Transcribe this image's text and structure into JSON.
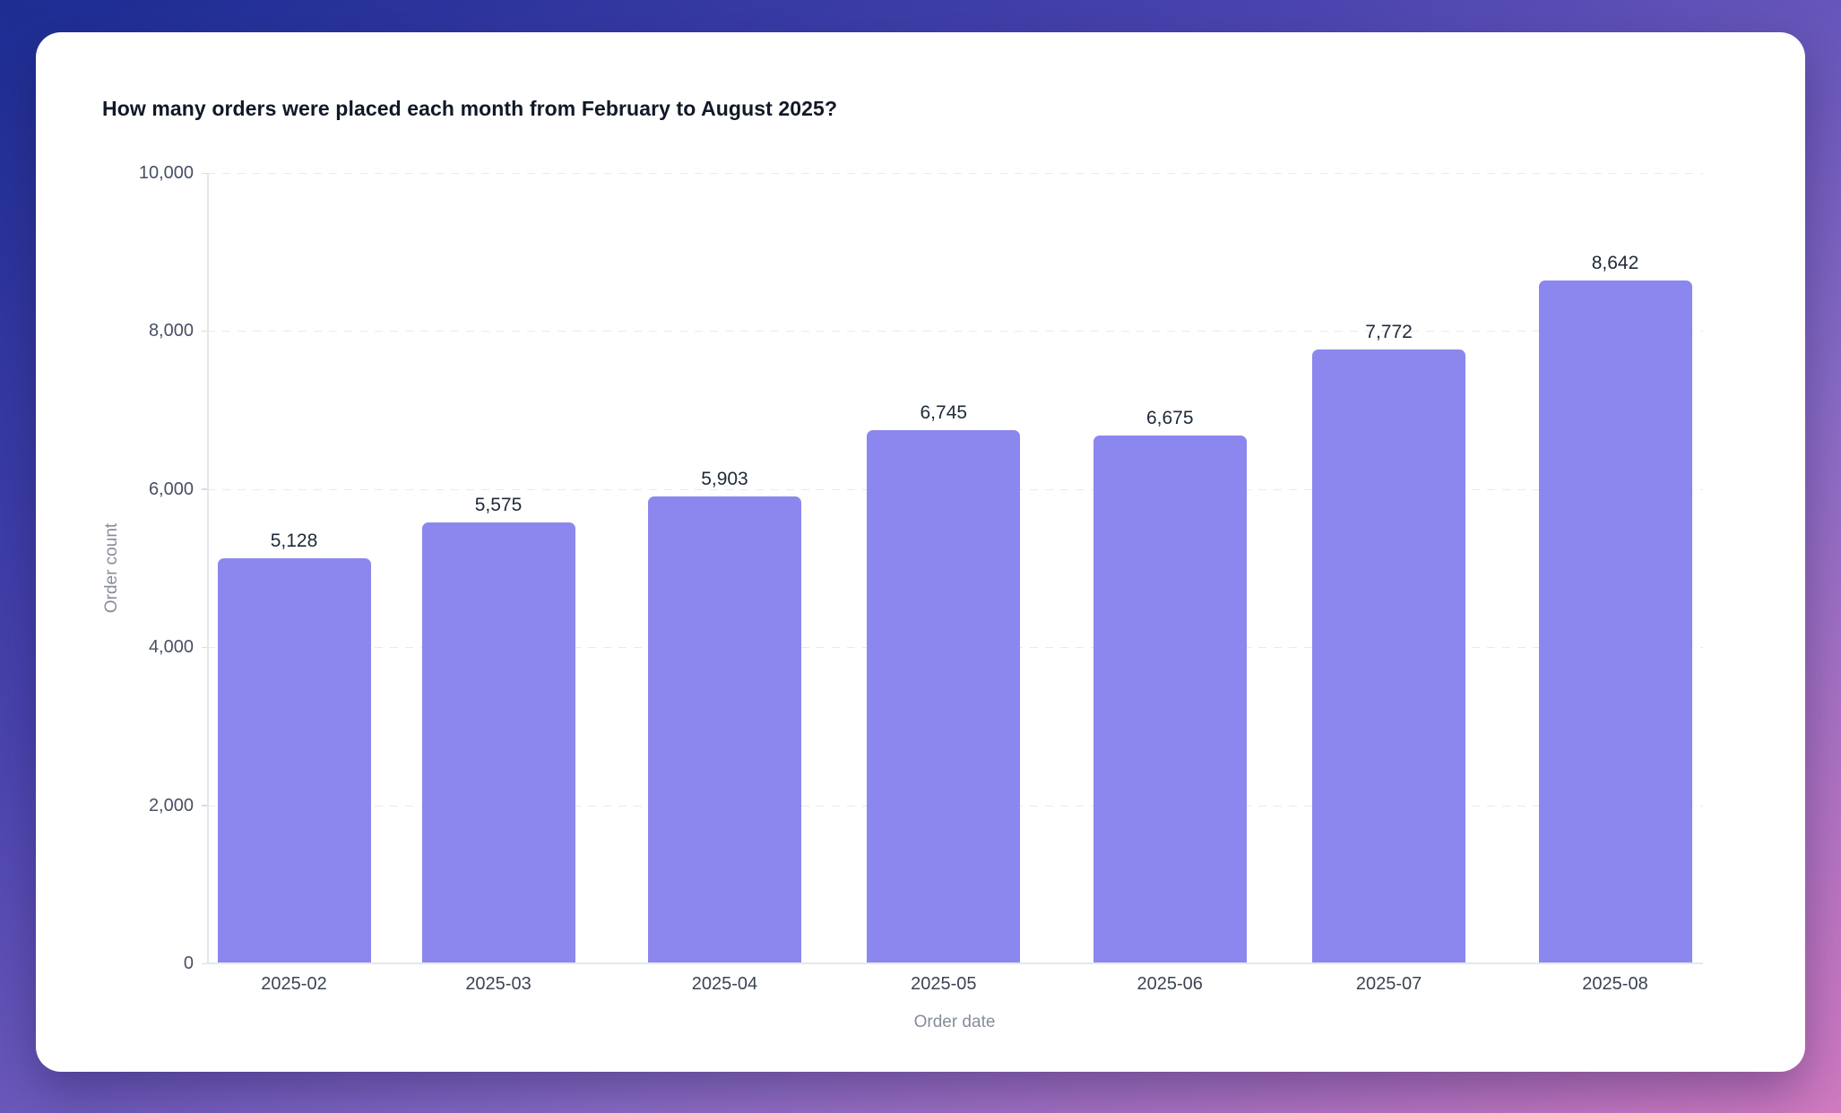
{
  "page": {
    "background_gradient": [
      "#1c2d92",
      "#4a44b0",
      "#8a6cc6",
      "#d27ac0"
    ]
  },
  "card": {
    "title": "How many orders were placed each month from February to August 2025?"
  },
  "chart_data": {
    "type": "bar",
    "title": "How many orders were placed each month from February to August 2025?",
    "categories": [
      "2025-02",
      "2025-03",
      "2025-04",
      "2025-05",
      "2025-06",
      "2025-07",
      "2025-08"
    ],
    "values": [
      5128,
      5575,
      5903,
      6745,
      6675,
      7772,
      8642
    ],
    "value_labels": [
      "5,128",
      "5,575",
      "5,903",
      "6,745",
      "6,675",
      "7,772",
      "8,642"
    ],
    "xlabel": "Order date",
    "ylabel": "Order count",
    "ylim": [
      0,
      10000
    ],
    "yticks": [
      {
        "value": 0,
        "label": "0"
      },
      {
        "value": 2000,
        "label": "2,000"
      },
      {
        "value": 4000,
        "label": "4,000"
      },
      {
        "value": 6000,
        "label": "6,000"
      },
      {
        "value": 8000,
        "label": "8,000"
      },
      {
        "value": 10000,
        "label": "10,000"
      }
    ],
    "x_scale": "time",
    "grid": "horizontal-dashed",
    "legend": "none",
    "bar_color": "#8b87ee",
    "value_label_color": "#1f2937",
    "tick_label_color": "#475064",
    "axis_title_color": "#878d99"
  }
}
